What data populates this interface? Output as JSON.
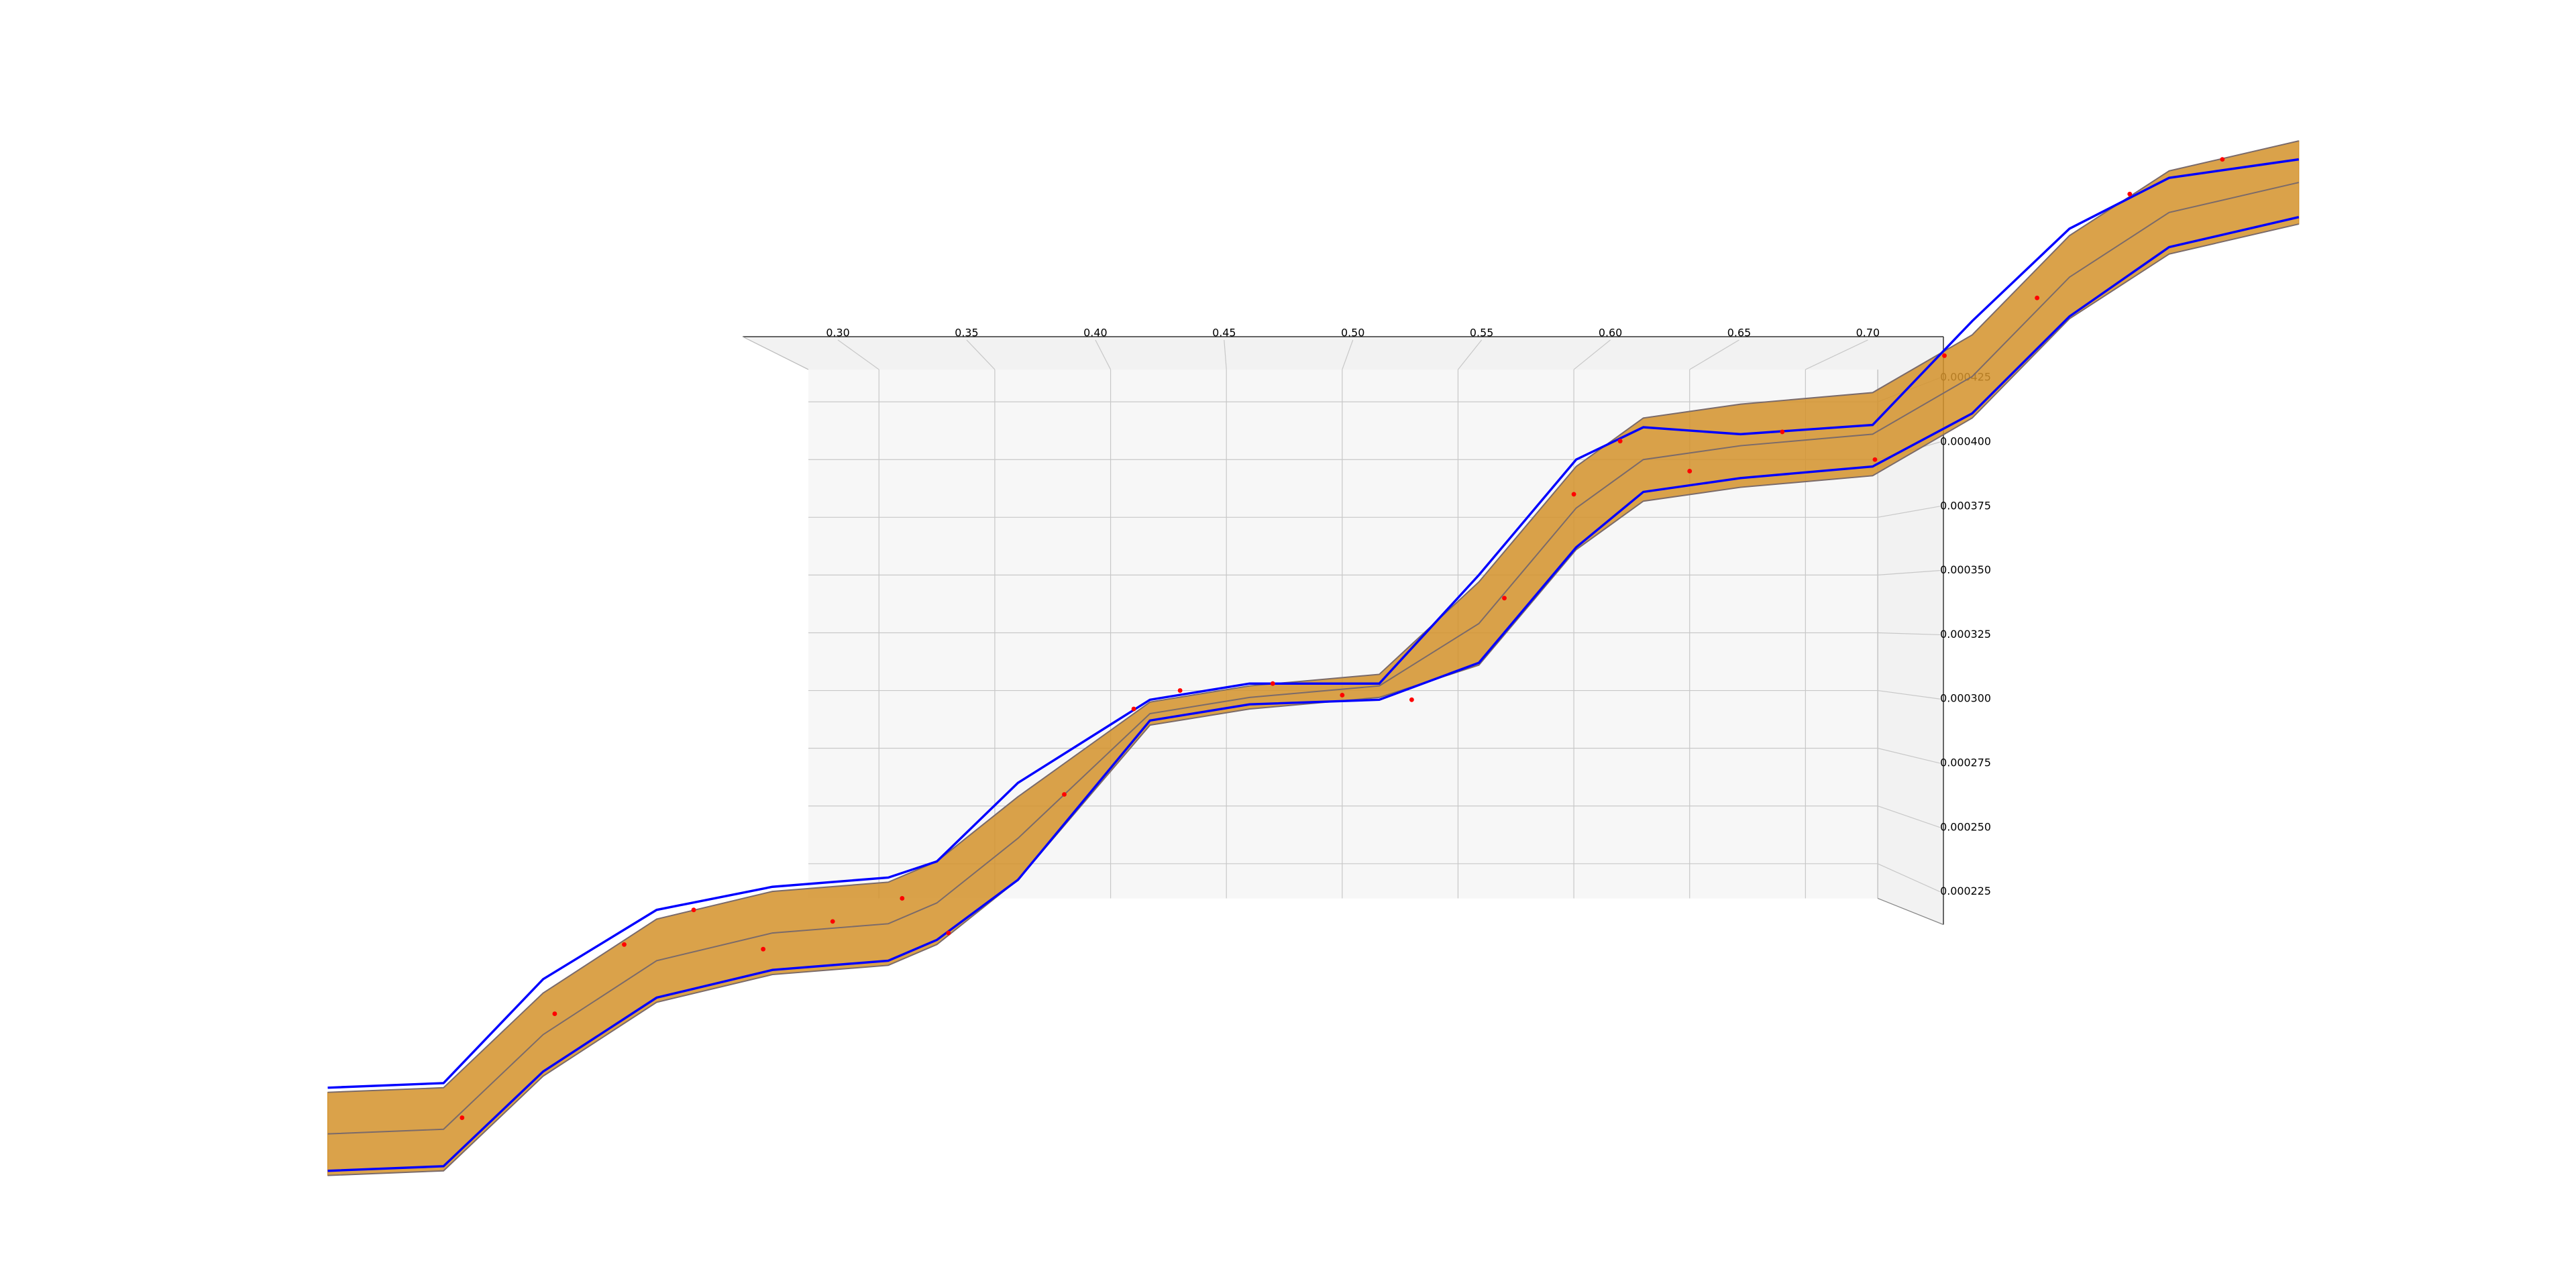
{
  "chart_data": {
    "type": "surface3d",
    "x": [
      0.062,
      0.112,
      0.155,
      0.204,
      0.254,
      0.304,
      0.325,
      0.36,
      0.417,
      0.46,
      0.516,
      0.559,
      0.601,
      0.63,
      0.672,
      0.729,
      0.772,
      0.814,
      0.857,
      0.913
    ],
    "surface": {
      "color": "#d4922a",
      "upper": [
        0.000126,
        0.000128,
        0.000169,
        0.000201,
        0.000213,
        0.000217,
        0.000226,
        0.000254,
        0.000295,
        0.000302,
        0.000307,
        0.000347,
        0.000397,
        0.000418,
        0.000424,
        0.000429,
        0.000454,
        0.000497,
        0.000525,
        0.000538
      ],
      "center": [
        0.000108,
        0.00011,
        0.000151,
        0.000183,
        0.000195,
        0.000199,
        0.000208,
        0.000236,
        0.00029,
        0.000297,
        0.000302,
        0.000329,
        0.000379,
        0.0004,
        0.000406,
        0.000411,
        0.000436,
        0.000479,
        0.000507,
        0.00052
      ],
      "lower": [
        9e-05,
        9.2e-05,
        0.000133,
        0.000165,
        0.000177,
        0.000181,
        0.00019,
        0.000218,
        0.000285,
        0.000292,
        0.000297,
        0.000311,
        0.000361,
        0.000382,
        0.000388,
        0.000393,
        0.000418,
        0.000461,
        0.000489,
        0.000502
      ]
    },
    "series": [
      {
        "color": "#0000ff",
        "values": [
          0.000128,
          0.00013,
          0.000175,
          0.000205,
          0.000215,
          0.000219,
          0.000226,
          0.00026,
          0.000296,
          0.000303,
          0.000303,
          0.00035,
          0.0004,
          0.000414,
          0.000411,
          0.000415,
          0.00046,
          0.0005,
          0.000522,
          0.00053
        ]
      },
      {
        "color": "#0000ff",
        "values": [
          9.2e-05,
          9.4e-05,
          0.000135,
          0.000167,
          0.000179,
          0.000183,
          0.000192,
          0.000218,
          0.000287,
          0.000294,
          0.000296,
          0.000312,
          0.000362,
          0.000386,
          0.000392,
          0.000397,
          0.00042,
          0.000462,
          0.000492,
          0.000505
        ]
      }
    ],
    "points": {
      "color": "#ff0000",
      "x": [
        0.12,
        0.16,
        0.19,
        0.22,
        0.25,
        0.28,
        0.31,
        0.33,
        0.38,
        0.41,
        0.43,
        0.47,
        0.5,
        0.53,
        0.57,
        0.6,
        0.62,
        0.65,
        0.69,
        0.73,
        0.76,
        0.8,
        0.84,
        0.88
      ],
      "y": [
        0.000115,
        0.00016,
        0.00019,
        0.000205,
        0.000188,
        0.0002,
        0.00021,
        0.000195,
        0.000255,
        0.000292,
        0.0003,
        0.000303,
        0.000298,
        0.000296,
        0.00034,
        0.000385,
        0.000408,
        0.000395,
        0.000412,
        0.0004,
        0.000445,
        0.00047,
        0.000515,
        0.00053
      ]
    },
    "xlim": [
      0.2695,
      0.7312
    ],
    "ylim": [
      0.00021,
      0.000439
    ],
    "xticks": [
      {
        "value": 0.3,
        "label": "0.30"
      },
      0.35,
      {
        "value": 0.4,
        "label": "0.40"
      },
      0.45,
      {
        "value": 0.5,
        "label": "0.50"
      },
      0.55,
      {
        "value": 0.6,
        "label": "0.60"
      },
      0.65,
      {
        "value": 0.7,
        "label": "0.70"
      }
    ],
    "yticks": [
      0.000225,
      {
        "value": 0.00025,
        "label": "0.000250"
      },
      0.000275,
      {
        "value": 0.0003,
        "label": "0.000300"
      },
      0.000325,
      {
        "value": 0.00035,
        "label": "0.000350"
      },
      0.000375,
      {
        "value": 0.0004,
        "label": "0.000400"
      },
      0.000425
    ],
    "grid": true
  }
}
